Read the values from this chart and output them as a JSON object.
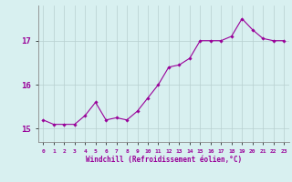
{
  "x": [
    0,
    1,
    2,
    3,
    4,
    5,
    6,
    7,
    8,
    9,
    10,
    11,
    12,
    13,
    14,
    15,
    16,
    17,
    18,
    19,
    20,
    21,
    22,
    23
  ],
  "y": [
    15.2,
    15.1,
    15.1,
    15.1,
    15.3,
    15.6,
    15.2,
    15.25,
    15.2,
    15.4,
    15.7,
    16.0,
    16.4,
    16.45,
    16.6,
    17.0,
    17.0,
    17.0,
    17.1,
    17.5,
    17.25,
    17.05,
    17.0,
    17.0
  ],
  "ylim": [
    14.7,
    17.8
  ],
  "yticks": [
    15,
    16,
    17
  ],
  "xticks": [
    0,
    1,
    2,
    3,
    4,
    5,
    6,
    7,
    8,
    9,
    10,
    11,
    12,
    13,
    14,
    15,
    16,
    17,
    18,
    19,
    20,
    21,
    22,
    23
  ],
  "xlabel": "Windchill (Refroidissement éolien,°C)",
  "line_color": "#990099",
  "marker": "D",
  "marker_size": 1.8,
  "bg_color": "#d8f0f0",
  "grid_color": "#b8d0d0",
  "label_color": "#990099",
  "spine_color": "#888888"
}
